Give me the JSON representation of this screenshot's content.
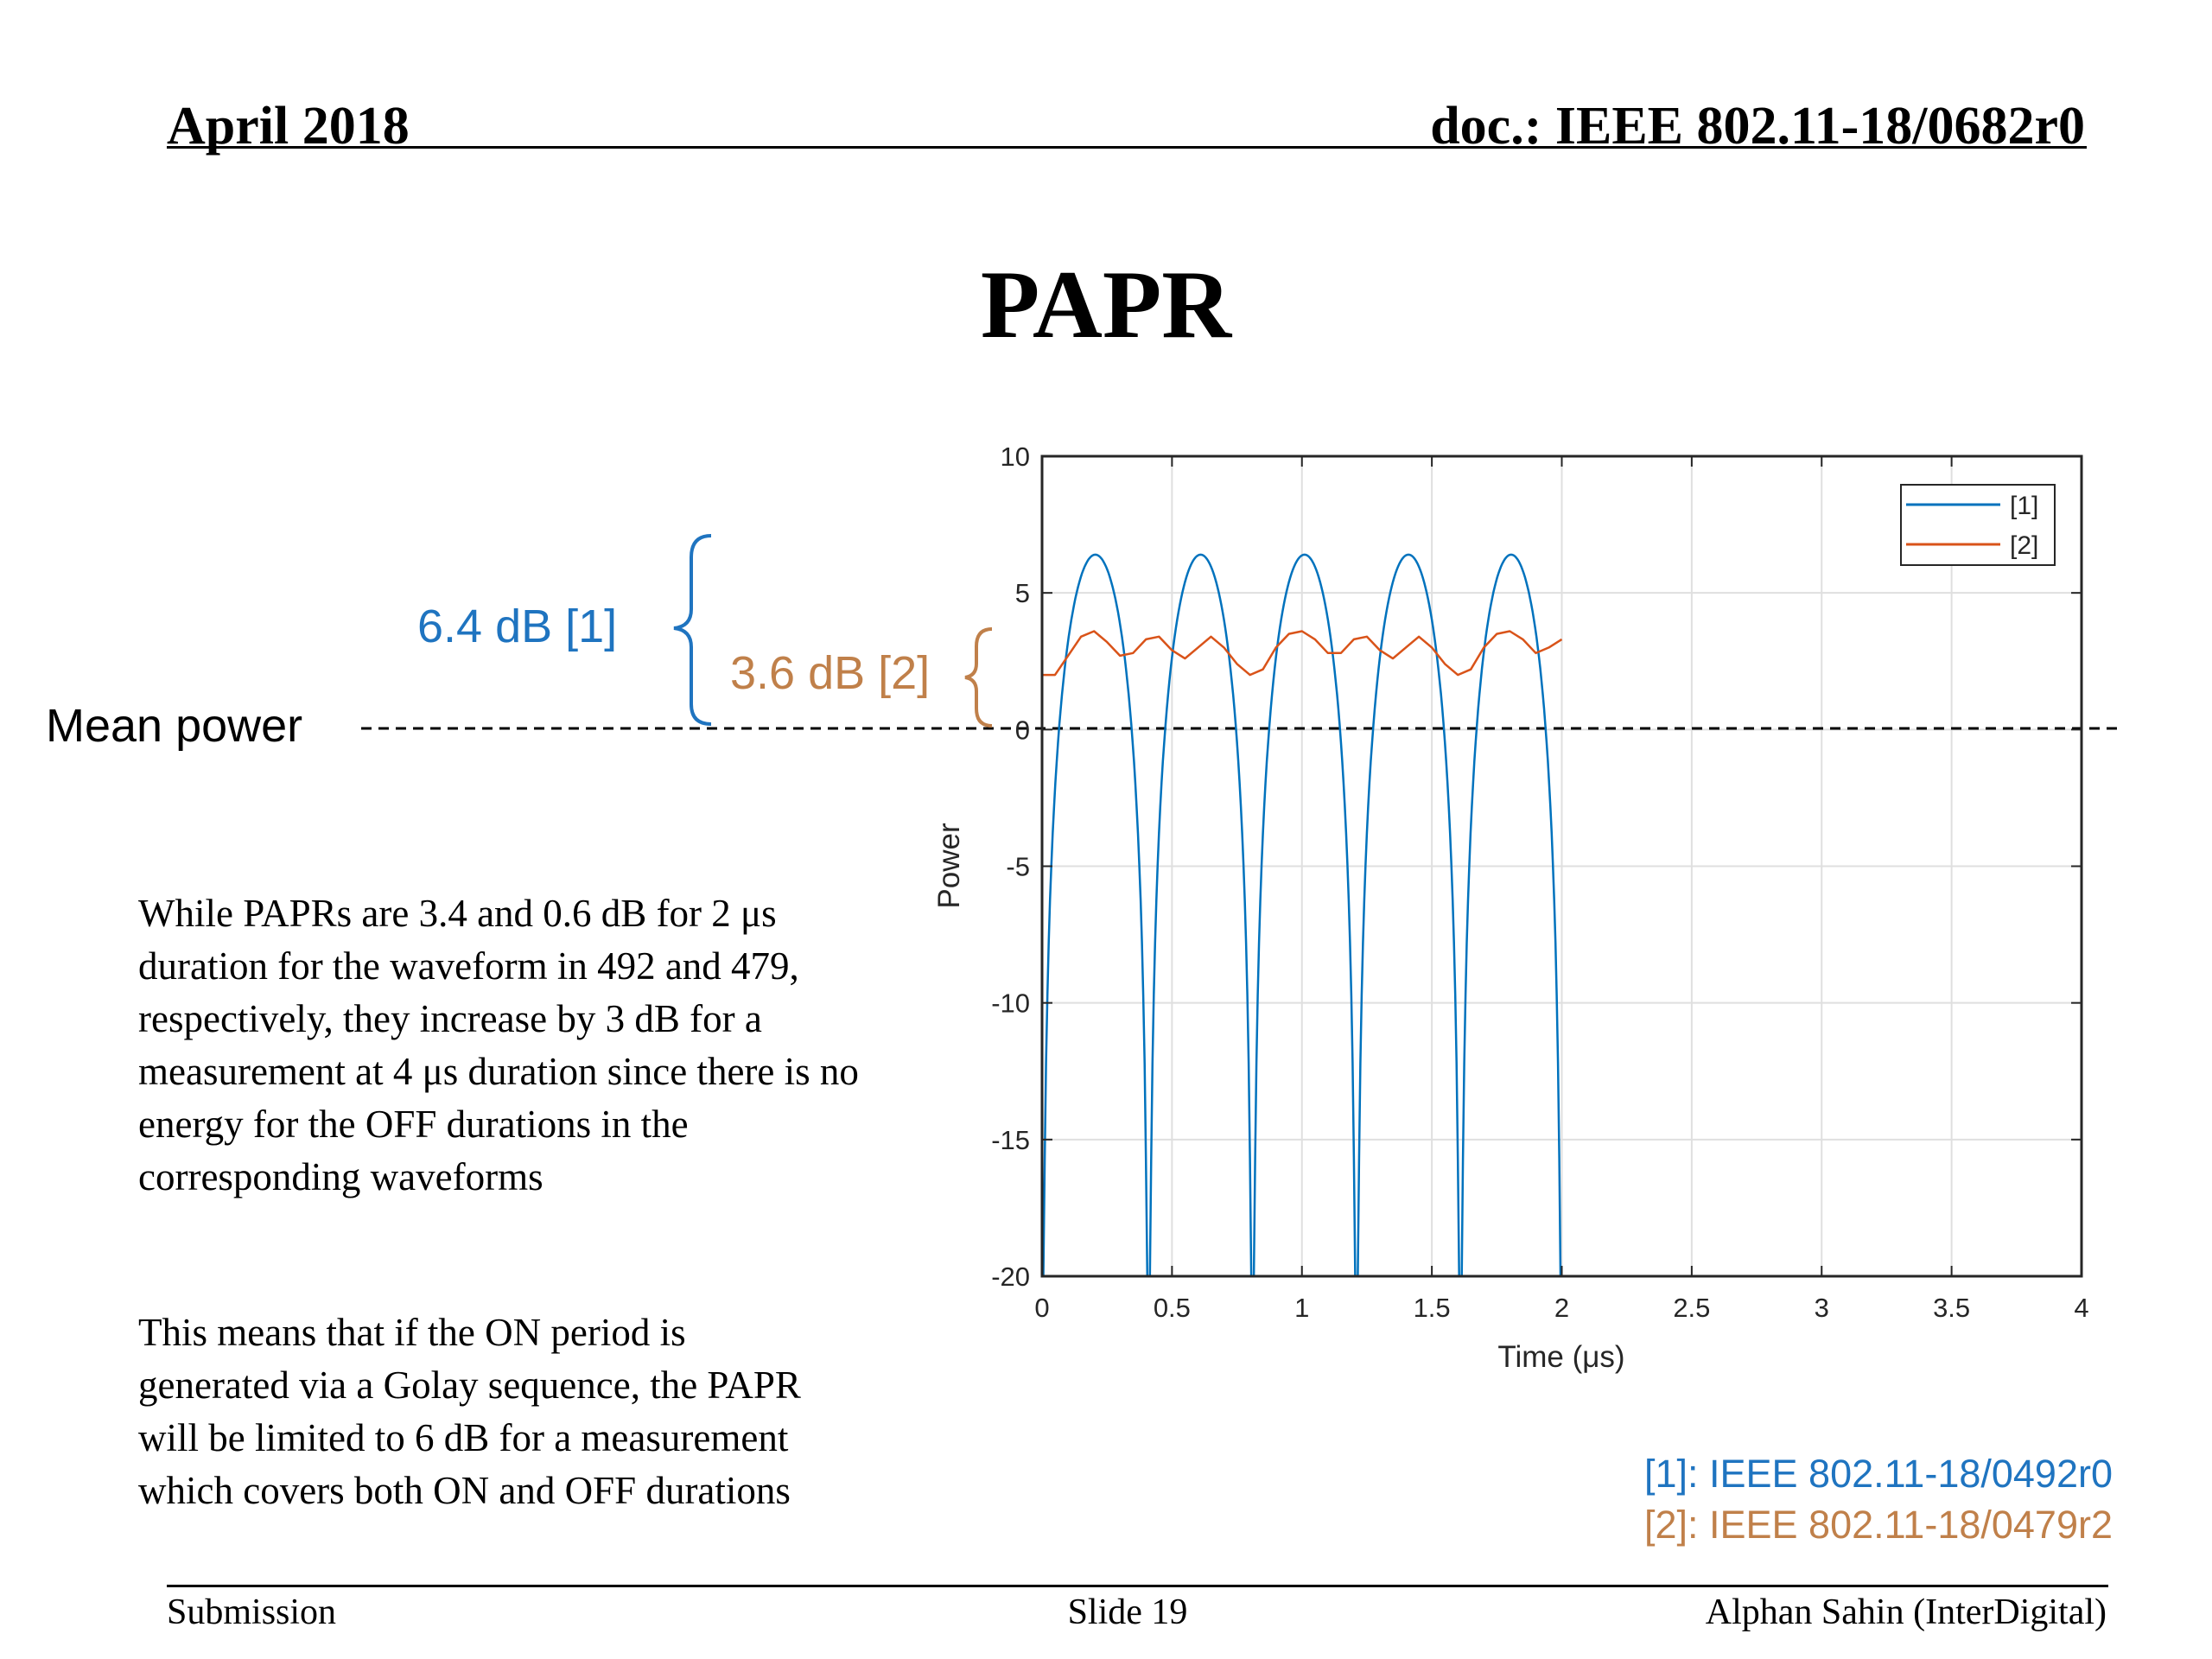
{
  "header": {
    "date": "April 2018",
    "doc": "doc.: IEEE 802.11-18/0682r0"
  },
  "title": "PAPR",
  "annotations": {
    "mean_power": "Mean power",
    "papr_1": "6.4 dB [1]",
    "papr_2": "3.6 dB [2]"
  },
  "body": {
    "paragraph_1": "While PAPRs are 3.4 and 0.6 dB for 2 μs duration for the waveform  in 492 and 479, respectively, they increase by 3 dB for a measurement at 4 μs duration since there is no energy for the OFF durations in the corresponding waveforms",
    "paragraph_2": "This means that if the ON period is generated via a Golay sequence, the PAPR will be limited to 6 dB for a measurement which covers both ON and OFF durations"
  },
  "references": {
    "ref_1": "[1]: IEEE 802.11-18/0492r0",
    "ref_2": "[2]: IEEE 802.11-18/0479r2"
  },
  "footer": {
    "left": "Submission",
    "center": "Slide 19",
    "right": "Alphan Sahin (InterDigital)"
  },
  "colors": {
    "series_1": "#0072BD",
    "series_2": "#D95319",
    "ann_1": "#1F74C0",
    "ann_2": "#C0804A"
  },
  "chart_data": {
    "type": "line",
    "xlabel": "Time (μs)",
    "ylabel": "Power",
    "xlim": [
      0,
      4
    ],
    "ylim": [
      -20,
      10
    ],
    "xticks": [
      0,
      0.5,
      1,
      1.5,
      2,
      2.5,
      3,
      3.5,
      4
    ],
    "xtick_labels": [
      "0",
      "0.5",
      "1",
      "1.5",
      "2",
      "2.5",
      "3",
      "3.5",
      "4"
    ],
    "yticks": [
      -20,
      -15,
      -10,
      -5,
      0,
      5,
      10
    ],
    "ytick_labels": [
      "-20",
      "-15",
      "-10",
      "-5",
      "0",
      "5",
      "10"
    ],
    "grid": true,
    "legend": {
      "position": "top-right",
      "entries": [
        "[1]",
        "[2]"
      ]
    },
    "reference_line": {
      "y": 0,
      "style": "dashed",
      "label": "Mean power"
    },
    "series": [
      {
        "name": "[1]",
        "lobes": [
          {
            "start": 0.0,
            "end": 0.41,
            "peak": 6.4
          },
          {
            "start": 0.41,
            "end": 0.81,
            "peak": 6.4
          },
          {
            "start": 0.81,
            "end": 1.21,
            "peak": 6.4
          },
          {
            "start": 1.21,
            "end": 1.61,
            "peak": 6.4
          },
          {
            "start": 1.61,
            "end": 2.0,
            "peak": 6.4
          }
        ],
        "floor": -20
      },
      {
        "name": "[2]",
        "x": [
          0,
          0.05,
          0.1,
          0.15,
          0.2,
          0.25,
          0.3,
          0.35,
          0.4,
          0.45,
          0.5,
          0.55,
          0.6,
          0.65,
          0.7,
          0.75,
          0.8,
          0.85,
          0.9,
          0.95,
          1.0,
          1.05,
          1.1,
          1.15,
          1.2,
          1.25,
          1.3,
          1.35,
          1.4,
          1.45,
          1.5,
          1.55,
          1.6,
          1.65,
          1.7,
          1.75,
          1.8,
          1.85,
          1.9,
          1.95,
          2.0
        ],
        "y": [
          2.0,
          2.0,
          2.7,
          3.4,
          3.6,
          3.2,
          2.7,
          2.8,
          3.3,
          3.4,
          2.9,
          2.6,
          3.0,
          3.4,
          3.0,
          2.4,
          2.0,
          2.2,
          3.0,
          3.5,
          3.6,
          3.3,
          2.8,
          2.8,
          3.3,
          3.4,
          2.9,
          2.6,
          3.0,
          3.4,
          3.0,
          2.4,
          2.0,
          2.2,
          3.0,
          3.5,
          3.6,
          3.3,
          2.8,
          3.0,
          3.3
        ]
      }
    ]
  }
}
